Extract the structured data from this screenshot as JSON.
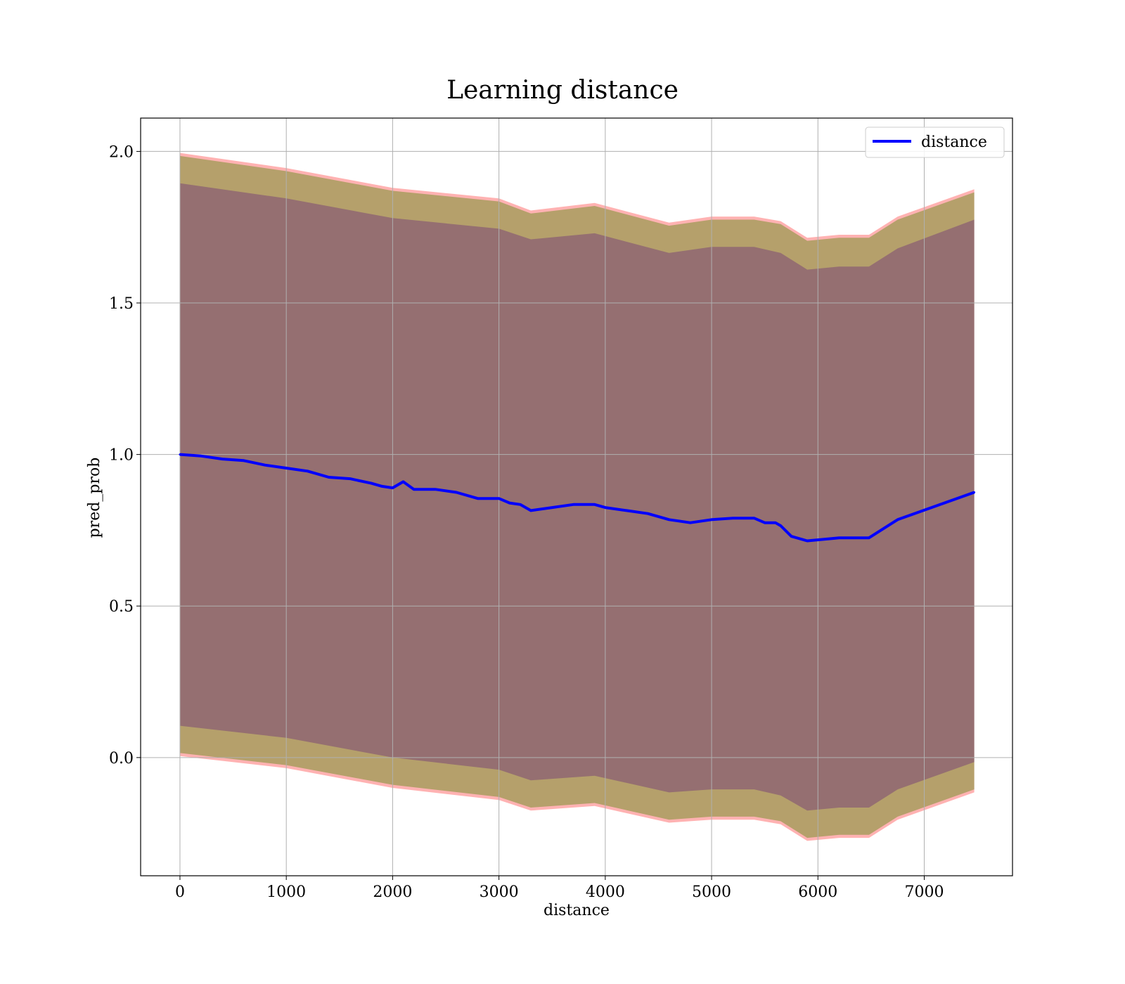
{
  "chart_data": {
    "type": "line",
    "title": "Learning distance",
    "xlabel": "distance",
    "ylabel": "pred_prob",
    "xlim": [
      -370,
      7830
    ],
    "ylim": [
      -0.39,
      2.11
    ],
    "xticks": [
      0,
      1000,
      2000,
      3000,
      4000,
      5000,
      6000,
      7000
    ],
    "xtick_labels": [
      "0",
      "1000",
      "2000",
      "3000",
      "4000",
      "5000",
      "6000",
      "7000"
    ],
    "yticks": [
      0.0,
      0.5,
      1.0,
      1.5,
      2.0
    ],
    "ytick_labels": [
      "0.0",
      "0.5",
      "1.0",
      "1.5",
      "2.0"
    ],
    "grid": true,
    "legend_position": "top-right",
    "series": [
      {
        "name": "distance",
        "color": "#0000ff",
        "x": [
          0,
          200,
          400,
          600,
          800,
          1000,
          1200,
          1400,
          1600,
          1800,
          1900,
          2000,
          2100,
          2200,
          2400,
          2600,
          2800,
          3000,
          3100,
          3200,
          3300,
          3500,
          3700,
          3900,
          4000,
          4200,
          4400,
          4600,
          4800,
          5000,
          5200,
          5400,
          5500,
          5600,
          5650,
          5750,
          5900,
          6200,
          6480,
          6750,
          7470
        ],
        "y": [
          1.0,
          0.995,
          0.985,
          0.98,
          0.965,
          0.955,
          0.945,
          0.925,
          0.92,
          0.905,
          0.895,
          0.89,
          0.91,
          0.885,
          0.885,
          0.875,
          0.855,
          0.855,
          0.84,
          0.835,
          0.815,
          0.825,
          0.835,
          0.835,
          0.825,
          0.815,
          0.805,
          0.785,
          0.775,
          0.785,
          0.79,
          0.79,
          0.775,
          0.775,
          0.765,
          0.73,
          0.715,
          0.725,
          0.725,
          0.785,
          0.875
        ]
      }
    ],
    "bands": [
      {
        "label": "",
        "color": "#ff0000",
        "opacity": 0.3,
        "x": [
          0,
          1000,
          2000,
          3000,
          3300,
          3900,
          4600,
          5000,
          5400,
          5650,
          5900,
          6200,
          6480,
          6750,
          7470
        ],
        "upper": [
          1.995,
          1.945,
          1.88,
          1.845,
          1.805,
          1.83,
          1.765,
          1.785,
          1.785,
          1.77,
          1.715,
          1.725,
          1.725,
          1.785,
          1.875
        ],
        "lower": [
          0.005,
          -0.035,
          -0.1,
          -0.14,
          -0.175,
          -0.16,
          -0.215,
          -0.205,
          -0.205,
          -0.22,
          -0.275,
          -0.265,
          -0.265,
          -0.205,
          -0.115
        ]
      },
      {
        "label": "",
        "color": "#6b8e23",
        "opacity": 0.5,
        "x": [
          0,
          1000,
          2000,
          3000,
          3300,
          3900,
          4600,
          5000,
          5400,
          5650,
          5900,
          6200,
          6480,
          6750,
          7470
        ],
        "upper": [
          1.985,
          1.935,
          1.87,
          1.835,
          1.795,
          1.82,
          1.755,
          1.775,
          1.775,
          1.76,
          1.705,
          1.715,
          1.715,
          1.775,
          1.865
        ],
        "lower": [
          0.015,
          -0.025,
          -0.09,
          -0.13,
          -0.165,
          -0.15,
          -0.205,
          -0.195,
          -0.195,
          -0.21,
          -0.265,
          -0.255,
          -0.255,
          -0.195,
          -0.105
        ]
      },
      {
        "label": "",
        "color": "#4b0082",
        "opacity": 0.3,
        "x": [
          0,
          1000,
          2000,
          3000,
          3300,
          3900,
          4600,
          5000,
          5400,
          5650,
          5900,
          6200,
          6480,
          6750,
          7470
        ],
        "upper": [
          1.895,
          1.845,
          1.78,
          1.745,
          1.71,
          1.73,
          1.665,
          1.685,
          1.685,
          1.665,
          1.61,
          1.62,
          1.62,
          1.68,
          1.775
        ],
        "lower": [
          0.105,
          0.065,
          0.0,
          -0.04,
          -0.075,
          -0.06,
          -0.115,
          -0.105,
          -0.105,
          -0.125,
          -0.175,
          -0.165,
          -0.165,
          -0.105,
          -0.015
        ]
      }
    ]
  }
}
